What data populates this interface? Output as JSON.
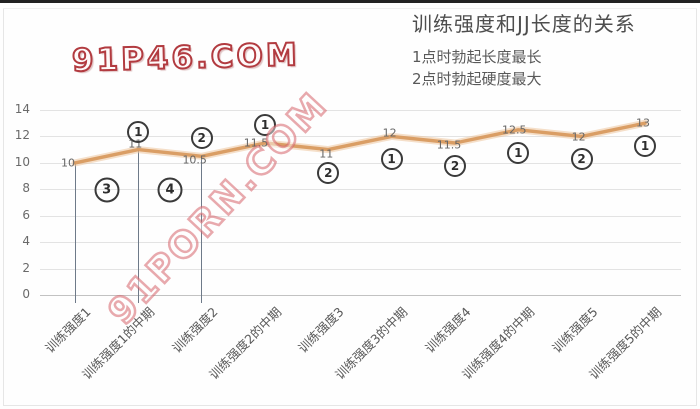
{
  "watermarks": {
    "logo": "91P46.COM",
    "diagonal": "91PORN.COM"
  },
  "header": {
    "title": "训练强度和JJ长度的关系",
    "note1": "1点时勃起长度最长",
    "note2": "2点时勃起硬度最大"
  },
  "chart_data": {
    "type": "line",
    "title": "训练强度和JJ长度的关系",
    "subtitles": [
      "1点时勃起长度最长",
      "2点时勃起硬度最大"
    ],
    "categories": [
      "训练强度1",
      "训练强度1的中期",
      "训练强度2",
      "训练强度2的中期",
      "训练强度3",
      "训练强度3的中期",
      "训练强度4",
      "训练强度4的中期",
      "训练强度5",
      "训练强度5的中期"
    ],
    "values": [
      10,
      11,
      10.5,
      11.5,
      11,
      12,
      11.5,
      12.5,
      12,
      13
    ],
    "data_labels": [
      "10",
      "11",
      "10.5",
      "11.5",
      "11",
      "12",
      "11.5",
      "12.5",
      "12",
      "13"
    ],
    "yticks": [
      0,
      2,
      4,
      6,
      8,
      10,
      12,
      14
    ],
    "ylim": [
      0,
      14
    ],
    "grid": true,
    "legend": false,
    "line_color": "#d89a60",
    "line_halo_color": "#ecc49c",
    "annotations": [
      {
        "text": "1",
        "point": 1,
        "placement": "above"
      },
      {
        "text": "3",
        "point": 0.5,
        "placement": "mid"
      },
      {
        "text": "2",
        "point": 2,
        "placement": "above"
      },
      {
        "text": "4",
        "point": 1.5,
        "placement": "mid"
      },
      {
        "text": "1",
        "point": 3,
        "placement": "above"
      },
      {
        "text": "2",
        "point": 4,
        "placement": "below"
      },
      {
        "text": "1",
        "point": 5,
        "placement": "below"
      },
      {
        "text": "2",
        "point": 6,
        "placement": "below"
      },
      {
        "text": "1",
        "point": 7,
        "placement": "below"
      },
      {
        "text": "2",
        "point": 8,
        "placement": "below"
      },
      {
        "text": "1",
        "point": 9,
        "placement": "below"
      }
    ],
    "drop_lines_at_points": [
      0,
      1,
      2
    ]
  }
}
